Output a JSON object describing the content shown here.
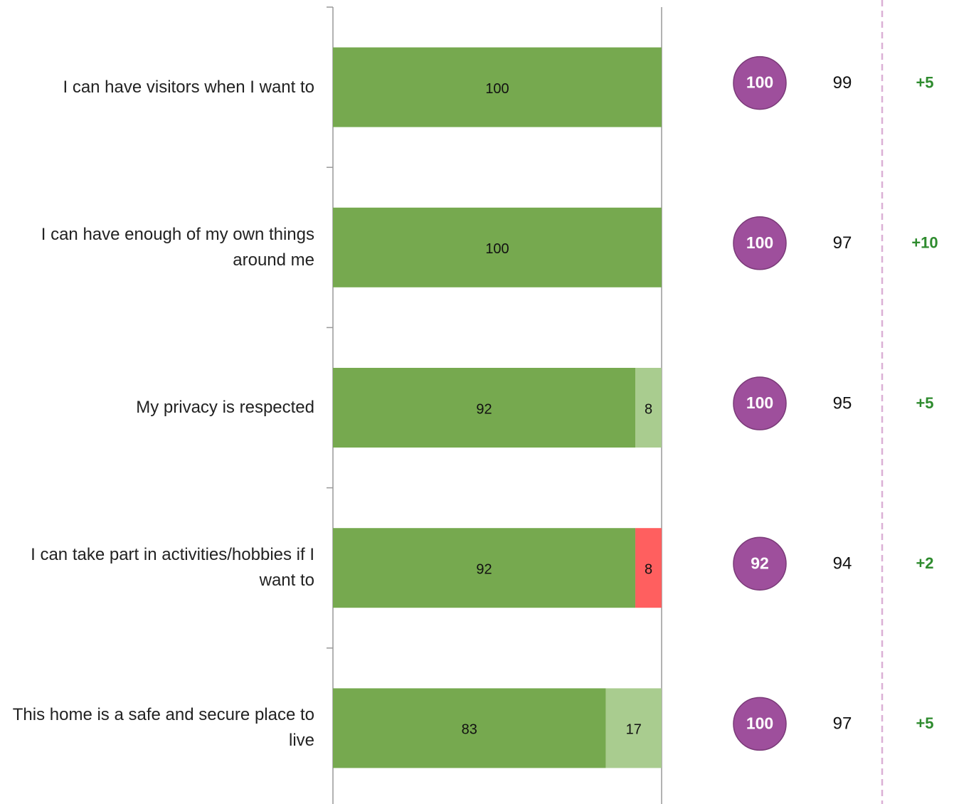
{
  "chart_data": {
    "type": "bar",
    "categories": [
      "I can have visitors when I want to",
      "I can have enough of my own things around me",
      "My privacy is respected",
      "I can take part in activities/hobbies if I want to",
      "This home is a safe and secure place to live"
    ],
    "series": [
      {
        "color": "#76a94f",
        "values": [
          100,
          100,
          92,
          92,
          83
        ]
      },
      {
        "color": "#a9cc8f",
        "values": [
          null,
          null,
          8,
          null,
          17
        ]
      },
      {
        "color": "#ff5f5f",
        "values": [
          null,
          null,
          null,
          8,
          null
        ]
      }
    ],
    "xlim": [
      0,
      100
    ],
    "circle_color": "#9e4f9c",
    "circle_values": [
      100,
      100,
      100,
      92,
      100
    ],
    "comparison_values": [
      99,
      97,
      95,
      94,
      97
    ],
    "change": {
      "color": "#2e8b2e",
      "values": [
        5,
        10,
        5,
        2,
        5
      ],
      "value_labels": [
        "+5",
        "+10",
        "+5",
        "+2",
        "+5"
      ]
    }
  }
}
